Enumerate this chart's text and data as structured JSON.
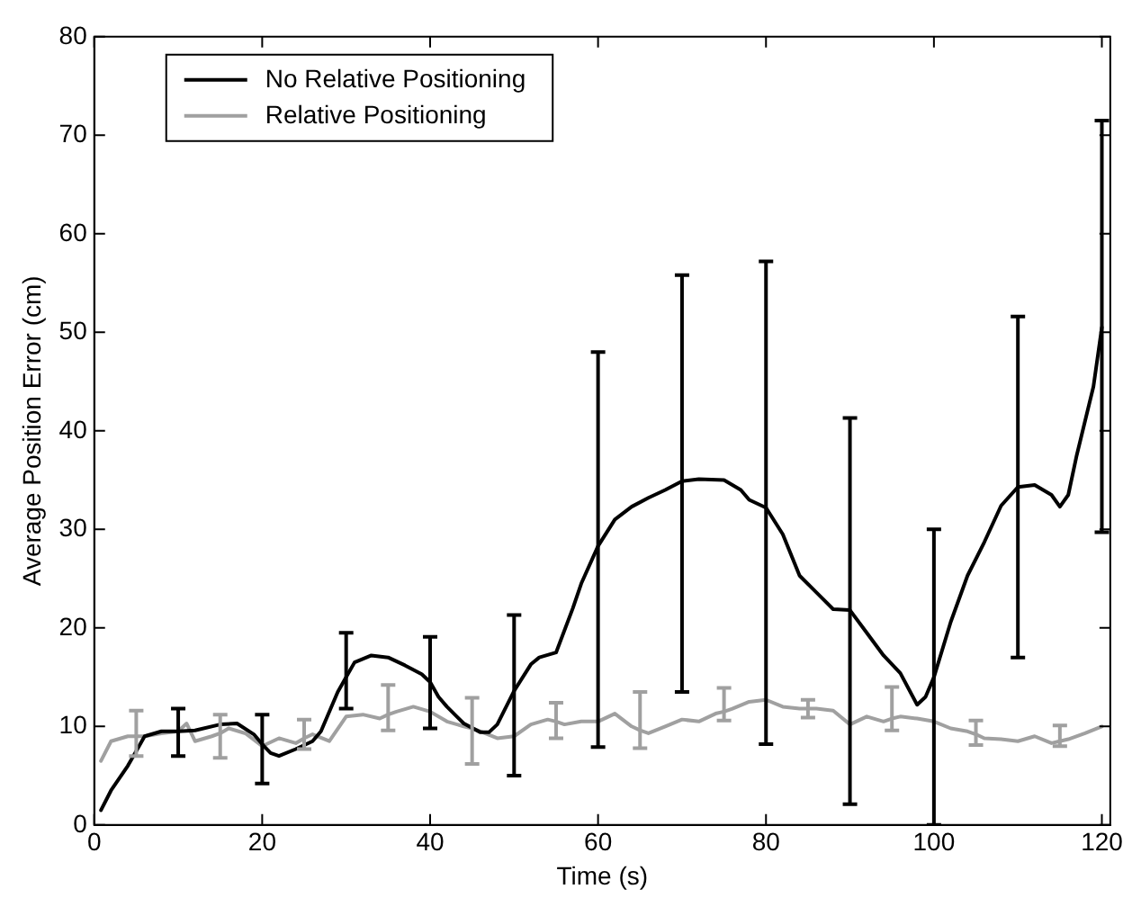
{
  "chart_data": {
    "type": "line",
    "xlabel": "Time (s)",
    "ylabel": "Average Position Error (cm)",
    "xlim": [
      0,
      121
    ],
    "ylim": [
      0,
      80
    ],
    "xticks": [
      0,
      20,
      40,
      60,
      80,
      100,
      120
    ],
    "yticks": [
      0,
      10,
      20,
      30,
      40,
      50,
      60,
      70,
      80
    ],
    "grid": false,
    "legend": "top left",
    "marker": "none",
    "line_style": "solid",
    "series": [
      {
        "name": "No Relative Positioning",
        "color": "#000000",
        "x": [
          0.8,
          2,
          4,
          5,
          6,
          8,
          10,
          12,
          15,
          17,
          19,
          20,
          21,
          22,
          24,
          26,
          27,
          29,
          30,
          31,
          33,
          35,
          37,
          39,
          40,
          41,
          42,
          44,
          46,
          47,
          48,
          50,
          52,
          53,
          55,
          57,
          58,
          60,
          62,
          64,
          66,
          68,
          70,
          72,
          75,
          77,
          78,
          80,
          82,
          84,
          86,
          88,
          90,
          92,
          94,
          96,
          98,
          99,
          100,
          102,
          104,
          106,
          108,
          110,
          112,
          114,
          115,
          116,
          117,
          119,
          120
        ],
        "values": [
          1.5,
          3.5,
          6,
          7.5,
          9,
          9.5,
          9.5,
          9.6,
          10.2,
          10.3,
          9.2,
          8.2,
          7.3,
          7,
          7.7,
          8.5,
          9.5,
          13.5,
          15,
          16.5,
          17.2,
          17,
          16.2,
          15.3,
          14.5,
          13,
          12,
          10.3,
          9.4,
          9.4,
          10.2,
          13.6,
          16.3,
          17,
          17.5,
          22,
          24.5,
          28.3,
          31,
          32.3,
          33.2,
          34,
          34.9,
          35.1,
          35,
          34,
          33,
          32.2,
          29.5,
          25.3,
          23.6,
          21.9,
          21.8,
          19.5,
          17.2,
          15.4,
          12.2,
          13,
          15,
          20.6,
          25.3,
          28.7,
          32.4,
          34.3,
          34.5,
          33.5,
          32.3,
          33.5,
          37.5,
          44.5,
          50.5
        ],
        "errors": [
          null,
          null,
          null,
          null,
          null,
          null,
          [
            7,
            11.8
          ],
          null,
          null,
          null,
          null,
          [
            4.2,
            11.2
          ],
          null,
          null,
          null,
          null,
          null,
          null,
          [
            11.8,
            19.5
          ],
          null,
          null,
          null,
          null,
          null,
          [
            9.8,
            19.1
          ],
          null,
          null,
          null,
          null,
          null,
          null,
          [
            5,
            21.3
          ],
          null,
          null,
          null,
          null,
          null,
          [
            7.9,
            48
          ],
          null,
          null,
          null,
          null,
          [
            13.5,
            55.8
          ],
          null,
          null,
          null,
          null,
          [
            8.2,
            57.2
          ],
          null,
          null,
          null,
          null,
          [
            2.1,
            41.3
          ],
          null,
          null,
          null,
          null,
          null,
          [
            0,
            30
          ],
          null,
          null,
          null,
          null,
          [
            17,
            51.6
          ],
          null,
          null,
          null,
          null,
          null,
          null,
          [
            29.7,
            71.5
          ]
        ]
      },
      {
        "name": "Relative Positioning",
        "color": "#a0a0a0",
        "x": [
          0.8,
          2,
          4,
          5,
          6,
          8,
          10,
          11,
          12,
          14,
          15,
          16,
          18,
          20,
          22,
          24,
          25,
          26,
          28,
          30,
          32,
          34,
          35,
          36,
          38,
          40,
          42,
          44,
          45,
          46,
          48,
          50,
          52,
          54,
          55,
          56,
          58,
          60,
          62,
          64,
          65,
          66,
          68,
          70,
          72,
          74,
          75,
          76,
          78,
          80,
          82,
          84,
          85,
          86,
          88,
          90,
          92,
          94,
          95,
          96,
          98,
          100,
          102,
          104,
          105,
          106,
          108,
          110,
          112,
          114,
          115,
          116,
          118,
          120
        ],
        "values": [
          6.5,
          8.5,
          9,
          9,
          9,
          9.3,
          9.5,
          10.3,
          8.5,
          9,
          9.3,
          9.8,
          9.3,
          8,
          8.8,
          8.3,
          8.8,
          9.2,
          8.5,
          11,
          11.2,
          10.8,
          11.2,
          11.5,
          12,
          11.5,
          10.5,
          10,
          9.8,
          9.5,
          8.8,
          9,
          10.2,
          10.7,
          10.5,
          10.2,
          10.5,
          10.5,
          11.3,
          10,
          9.6,
          9.3,
          10,
          10.7,
          10.5,
          11.3,
          11.5,
          11.8,
          12.5,
          12.7,
          12,
          11.8,
          11.8,
          11.8,
          11.6,
          10.2,
          11,
          10.5,
          10.8,
          11,
          10.8,
          10.5,
          9.8,
          9.5,
          9.2,
          8.8,
          8.7,
          8.5,
          9,
          8.3,
          8.5,
          8.7,
          9.3,
          10
        ],
        "errors": [
          null,
          null,
          null,
          [
            7,
            11.6
          ],
          null,
          null,
          null,
          null,
          null,
          null,
          [
            6.8,
            11.2
          ],
          null,
          null,
          null,
          null,
          null,
          [
            7.7,
            10.7
          ],
          null,
          null,
          null,
          null,
          null,
          [
            9.6,
            14.2
          ],
          null,
          null,
          null,
          null,
          null,
          [
            6.2,
            12.9
          ],
          null,
          null,
          null,
          null,
          null,
          [
            8.8,
            12.4
          ],
          null,
          null,
          null,
          null,
          null,
          [
            7.8,
            13.5
          ],
          null,
          null,
          null,
          null,
          null,
          [
            10.6,
            13.9
          ],
          null,
          null,
          null,
          null,
          null,
          [
            10.9,
            12.7
          ],
          null,
          null,
          null,
          null,
          null,
          [
            9.6,
            14
          ],
          null,
          null,
          null,
          null,
          null,
          [
            8.1,
            10.6
          ],
          null,
          null,
          null,
          null,
          null,
          [
            8,
            10.1
          ],
          null,
          null,
          null
        ]
      }
    ]
  }
}
